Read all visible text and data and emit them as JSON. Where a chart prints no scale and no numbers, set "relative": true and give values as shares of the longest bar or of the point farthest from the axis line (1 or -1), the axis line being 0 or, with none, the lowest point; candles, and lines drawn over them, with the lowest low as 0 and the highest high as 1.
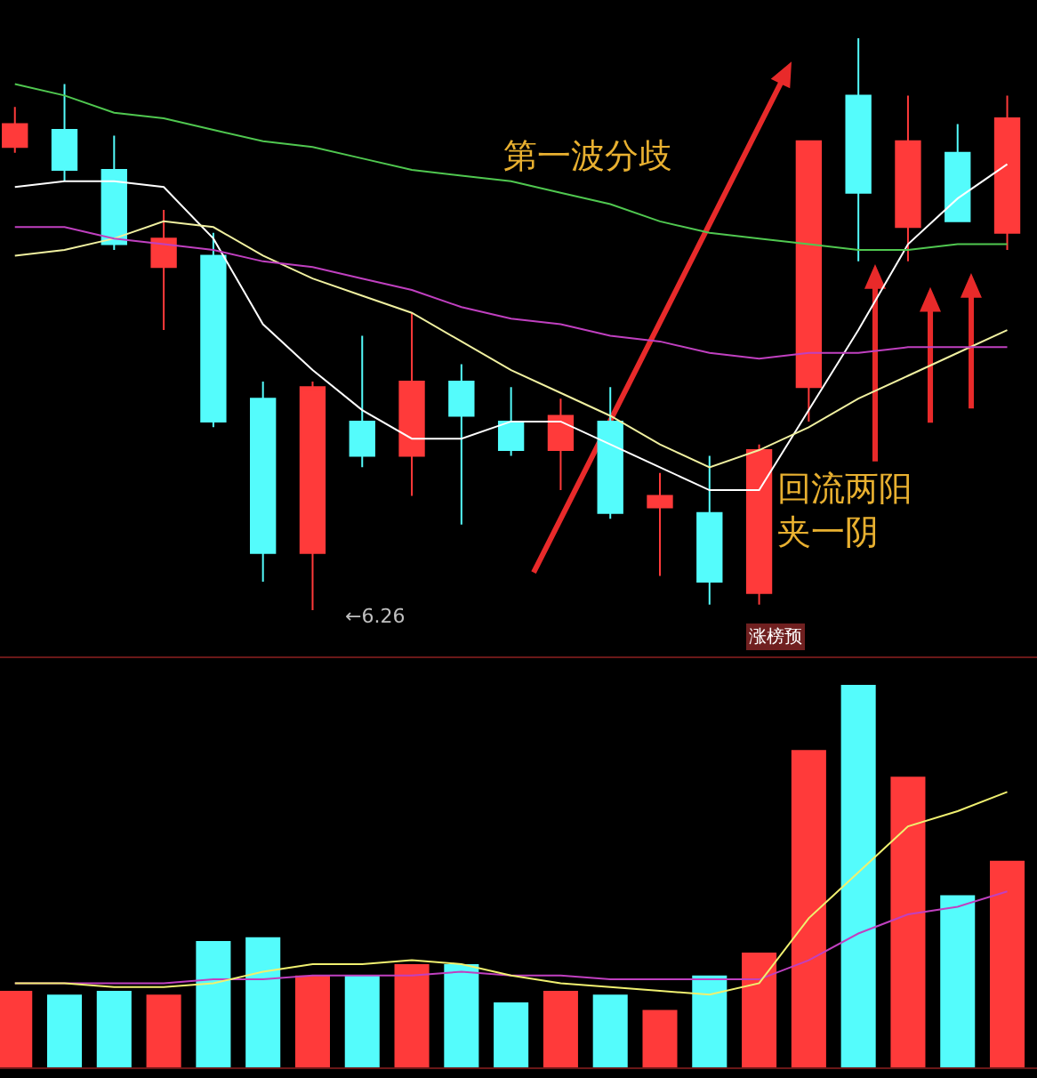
{
  "chart_data": [
    {
      "type": "candlestick",
      "relative": true,
      "categories": [
        null,
        null,
        null,
        null,
        null,
        null,
        null,
        null,
        null,
        null,
        null,
        null,
        null,
        null,
        null,
        null,
        null,
        null,
        null,
        null,
        null
      ],
      "ohlc": [
        [
          0.81,
          0.88,
          0.8,
          0.85
        ],
        [
          0.84,
          0.92,
          0.75,
          0.77
        ],
        [
          0.77,
          0.83,
          0.63,
          0.64
        ],
        [
          0.6,
          0.7,
          0.49,
          0.65
        ],
        [
          0.62,
          0.66,
          0.32,
          0.33
        ],
        [
          0.37,
          0.4,
          0.05,
          0.1
        ],
        [
          0.1,
          0.4,
          0,
          0.39
        ],
        [
          0.33,
          0.48,
          0.25,
          0.27
        ],
        [
          0.27,
          0.52,
          0.2,
          0.4
        ],
        [
          0.4,
          0.43,
          0.15,
          0.34
        ],
        [
          0.33,
          0.39,
          0.27,
          0.28
        ],
        [
          0.28,
          0.37,
          0.21,
          0.34
        ],
        [
          0.33,
          0.39,
          0.16,
          0.17
        ],
        [
          0.18,
          0.24,
          0.06,
          0.2
        ],
        [
          0.17,
          0.27,
          0.01,
          0.05
        ],
        [
          0.03,
          0.29,
          0.01,
          0.28
        ],
        [
          0.39,
          0.82,
          0.33,
          0.82
        ],
        [
          0.9,
          1,
          0.61,
          0.73
        ],
        [
          0.67,
          0.9,
          0.61,
          0.82
        ],
        [
          0.8,
          0.85,
          0.68,
          0.68
        ],
        [
          0.66,
          0.9,
          0.63,
          0.86
        ]
      ],
      "colors": [
        "#ff3a3a",
        "#54fcfc",
        "#54fcfc",
        "#ff3a3a",
        "#54fcfc",
        "#54fcfc",
        "#ff3a3a",
        "#54fcfc",
        "#ff3a3a",
        "#54fcfc",
        "#54fcfc",
        "#ff3a3a",
        "#54fcfc",
        "#ff3a3a",
        "#54fcfc",
        "#ff3a3a",
        "#ff3a3a",
        "#54fcfc",
        "#ff3a3a",
        "#54fcfc",
        "#ff3a3a"
      ],
      "series": [
        {
          "type": "line",
          "color": "#ffffff",
          "values": [
            0.74,
            0.75,
            0.75,
            0.74,
            0.65,
            0.5,
            0.42,
            0.35,
            0.3,
            0.3,
            0.33,
            0.33,
            0.29,
            0.25,
            0.21,
            0.21,
            0.35,
            0.49,
            0.64,
            0.72,
            0.78
          ]
        },
        {
          "type": "line",
          "color": "#f0f0a0",
          "values": [
            0.62,
            0.63,
            0.65,
            0.68,
            0.67,
            0.62,
            0.58,
            0.55,
            0.52,
            0.47,
            0.42,
            0.38,
            0.34,
            0.29,
            0.25,
            0.28,
            0.32,
            0.37,
            0.41,
            0.45,
            0.49
          ]
        },
        {
          "type": "line",
          "color": "#c040c0",
          "values": [
            0.67,
            0.67,
            0.65,
            0.64,
            0.63,
            0.61,
            0.6,
            0.58,
            0.56,
            0.53,
            0.51,
            0.5,
            0.48,
            0.47,
            0.45,
            0.44,
            0.45,
            0.45,
            0.46,
            0.46,
            0.46
          ]
        },
        {
          "type": "line",
          "color": "#50c850",
          "values": [
            0.92,
            0.9,
            0.87,
            0.86,
            0.84,
            0.82,
            0.81,
            0.79,
            0.77,
            0.76,
            0.75,
            0.73,
            0.71,
            0.68,
            0.66,
            0.65,
            0.64,
            0.63,
            0.63,
            0.64,
            0.64
          ]
        }
      ],
      "annotations": [
        "第一波分歧",
        "回流两阳夹一阴",
        "←6.26",
        "涨榜预"
      ]
    },
    {
      "type": "bar",
      "relative": true,
      "categories": [
        null,
        null,
        null,
        null,
        null,
        null,
        null,
        null,
        null,
        null,
        null,
        null,
        null,
        null,
        null,
        null,
        null,
        null,
        null,
        null,
        null
      ],
      "values": [
        0.2,
        0.19,
        0.2,
        0.19,
        0.33,
        0.34,
        0.24,
        0.24,
        0.27,
        0.27,
        0.17,
        0.2,
        0.19,
        0.15,
        0.24,
        0.3,
        0.83,
        1,
        0.76,
        0.45,
        0.54
      ],
      "colors": [
        "#ff3a3a",
        "#54fcfc",
        "#54fcfc",
        "#ff3a3a",
        "#54fcfc",
        "#54fcfc",
        "#ff3a3a",
        "#54fcfc",
        "#ff3a3a",
        "#54fcfc",
        "#54fcfc",
        "#ff3a3a",
        "#54fcfc",
        "#ff3a3a",
        "#54fcfc",
        "#ff3a3a",
        "#ff3a3a",
        "#54fcfc",
        "#ff3a3a",
        "#54fcfc",
        "#ff3a3a"
      ],
      "series": [
        {
          "type": "line",
          "color": "#c040c0",
          "values": [
            0.22,
            0.22,
            0.22,
            0.22,
            0.23,
            0.23,
            0.24,
            0.24,
            0.24,
            0.25,
            0.24,
            0.24,
            0.23,
            0.23,
            0.23,
            0.23,
            0.28,
            0.35,
            0.4,
            0.42,
            0.46
          ]
        },
        {
          "type": "line",
          "color": "#f0f070",
          "values": [
            0.22,
            0.22,
            0.21,
            0.21,
            0.22,
            0.25,
            0.27,
            0.27,
            0.28,
            0.27,
            0.24,
            0.22,
            0.21,
            0.2,
            0.19,
            0.22,
            0.39,
            0.51,
            0.63,
            0.67,
            0.72
          ]
        }
      ]
    }
  ]
}
